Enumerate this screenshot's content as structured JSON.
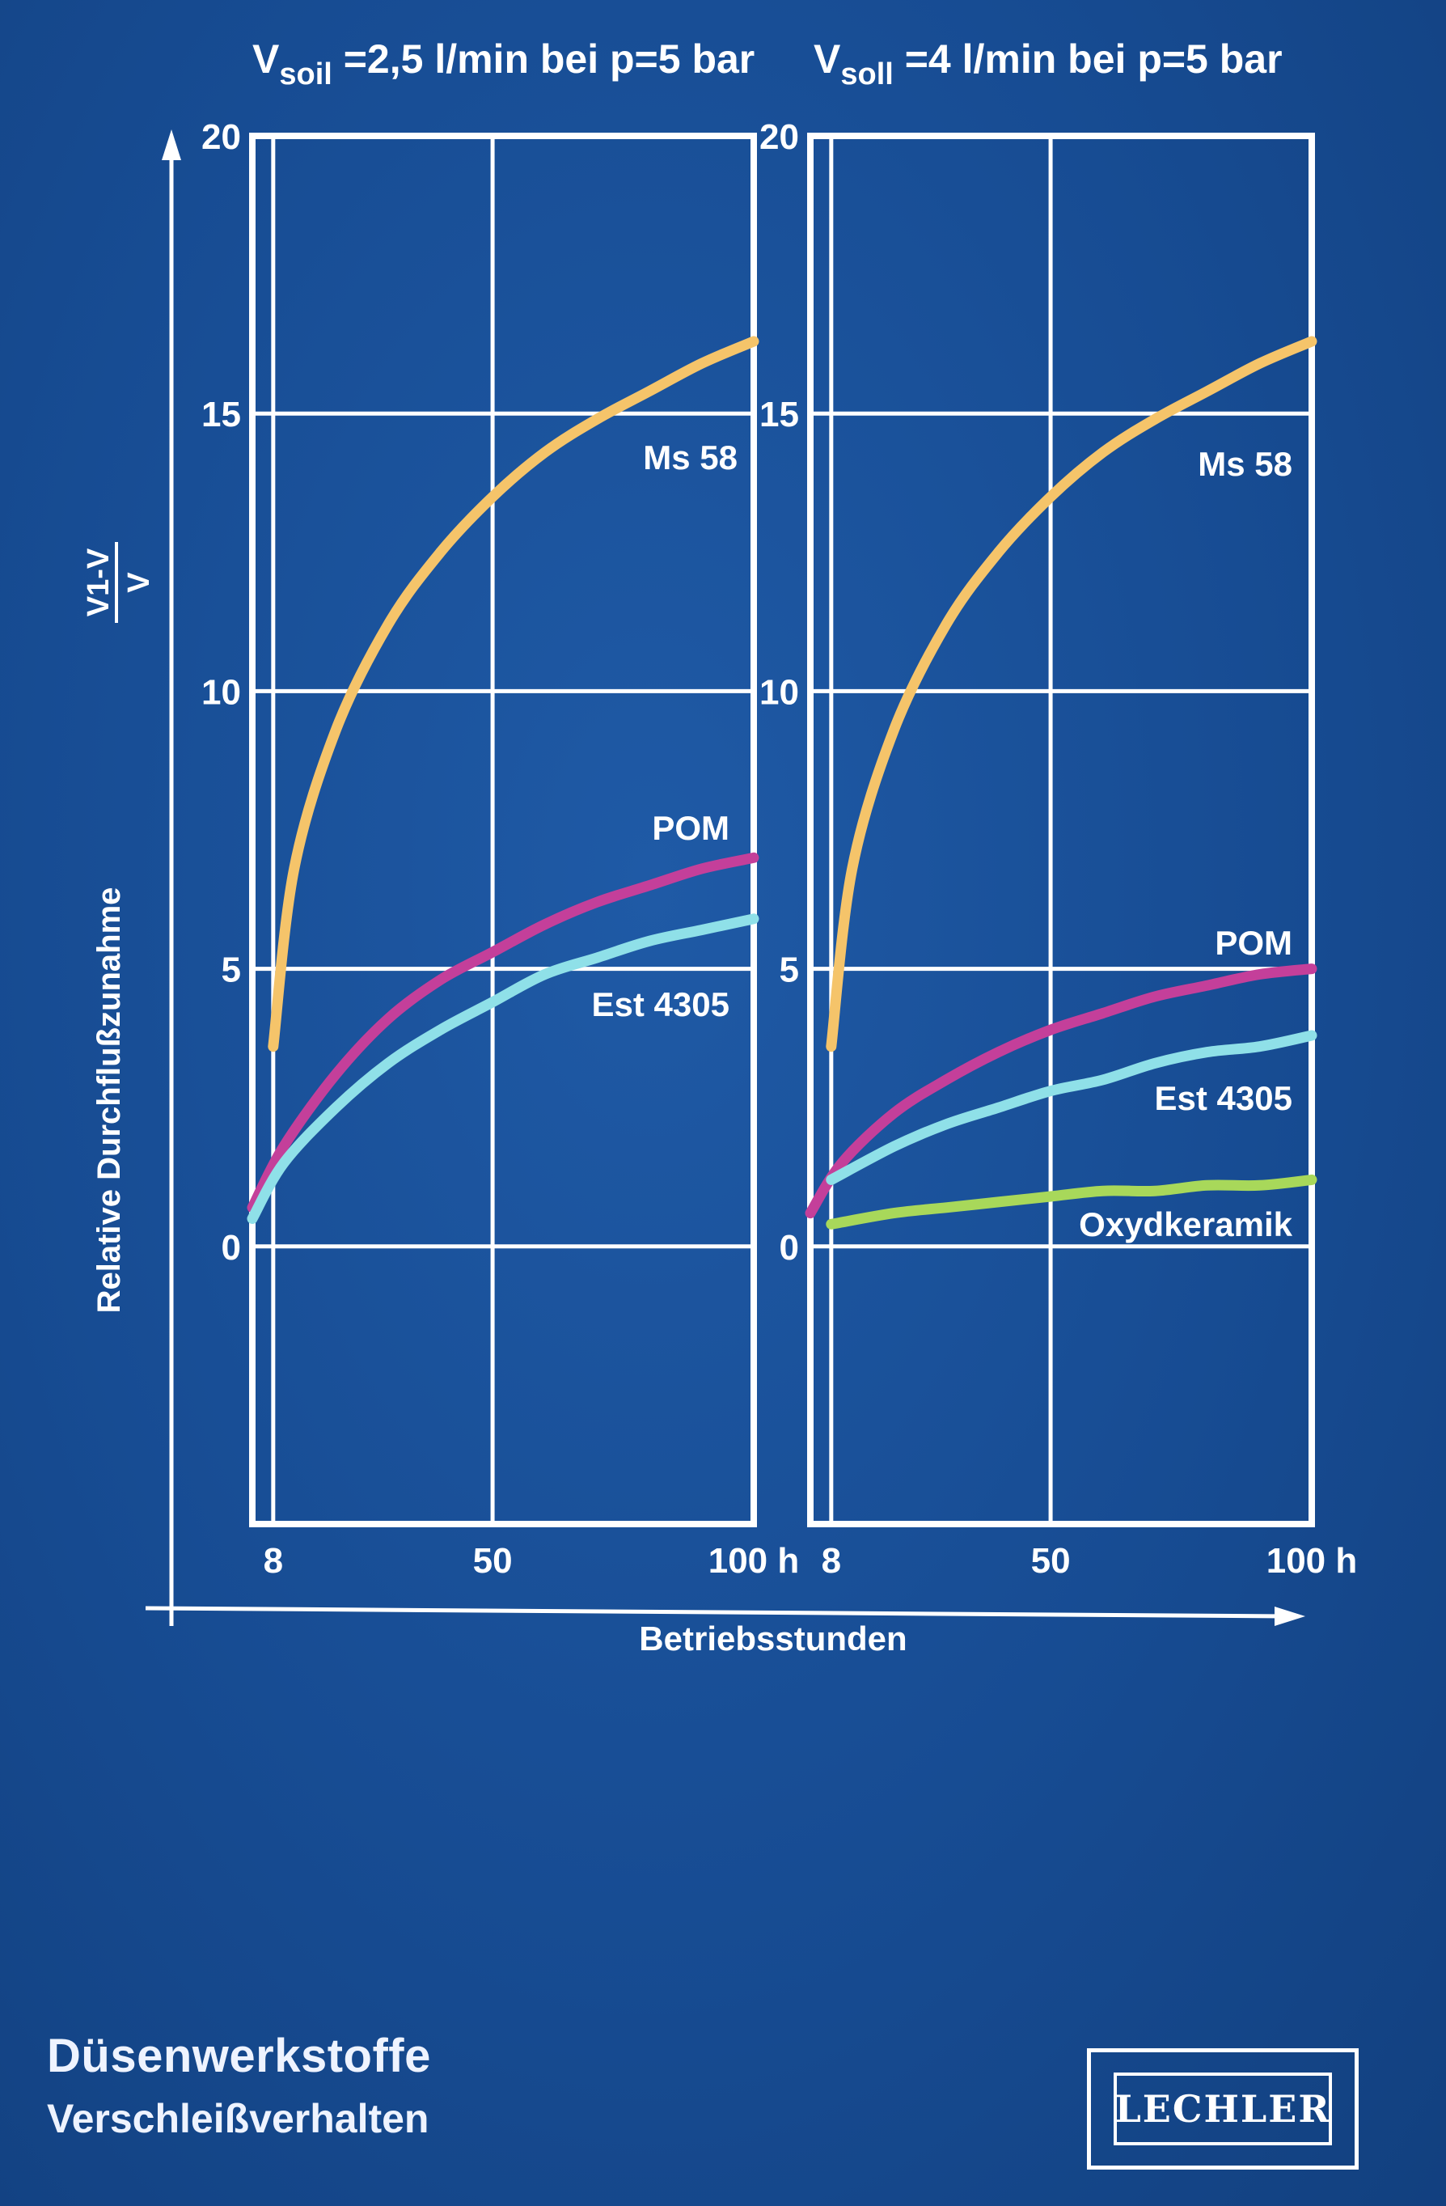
{
  "chart_data": [
    {
      "type": "line",
      "title": {
        "symbol": "V",
        "subscript": "soil",
        "rest": " =2,5 l/min bei p=5 bar"
      },
      "x_ticks": [
        8,
        50,
        100
      ],
      "x_tick_labels": [
        "8",
        "50",
        "100 h"
      ],
      "y_ticks": [
        0,
        5,
        10,
        15,
        20
      ],
      "y_tick_labels": [
        "0",
        "5",
        "10",
        "15",
        "20"
      ],
      "xlim": [
        4,
        100
      ],
      "ylim": [
        -5,
        20
      ],
      "grid": true,
      "series": [
        {
          "name": "Ms 58",
          "color": "#f5c46a",
          "x": [
            8,
            12,
            20,
            30,
            40,
            50,
            60,
            70,
            80,
            90,
            100
          ],
          "y": [
            3.6,
            6.8,
            9.3,
            11.2,
            12.5,
            13.5,
            14.3,
            14.9,
            15.4,
            15.9,
            16.3
          ]
        },
        {
          "name": "POM",
          "color": "#c43f9a",
          "x": [
            4,
            10,
            20,
            30,
            40,
            50,
            60,
            70,
            80,
            90,
            100
          ],
          "y": [
            0.7,
            1.8,
            3.1,
            4.1,
            4.8,
            5.3,
            5.8,
            6.2,
            6.5,
            6.8,
            7.0
          ]
        },
        {
          "name": "Est 4305",
          "color": "#8fe0e8",
          "x": [
            4,
            10,
            20,
            30,
            40,
            50,
            60,
            70,
            80,
            90,
            100
          ],
          "y": [
            0.5,
            1.5,
            2.5,
            3.3,
            3.9,
            4.4,
            4.9,
            5.2,
            5.5,
            5.7,
            5.9
          ]
        }
      ]
    },
    {
      "type": "line",
      "title": {
        "symbol": "V",
        "subscript": "soll",
        "rest": " =4 l/min bei p=5 bar"
      },
      "x_ticks": [
        8,
        50,
        100
      ],
      "x_tick_labels": [
        "8",
        "50",
        "100 h"
      ],
      "y_ticks": [
        0,
        5,
        10,
        15,
        20
      ],
      "y_tick_labels": [
        "0",
        "5",
        "10",
        "15",
        "20"
      ],
      "xlim": [
        4,
        100
      ],
      "ylim": [
        -5,
        20
      ],
      "grid": true,
      "series": [
        {
          "name": "Ms 58",
          "color": "#f5c46a",
          "x": [
            8,
            12,
            20,
            30,
            40,
            50,
            60,
            70,
            80,
            90,
            100
          ],
          "y": [
            3.6,
            6.8,
            9.3,
            11.2,
            12.5,
            13.5,
            14.3,
            14.9,
            15.4,
            15.9,
            16.3
          ]
        },
        {
          "name": "POM",
          "color": "#c43f9a",
          "x": [
            4,
            10,
            20,
            30,
            40,
            50,
            60,
            70,
            80,
            90,
            100
          ],
          "y": [
            0.6,
            1.5,
            2.4,
            3.0,
            3.5,
            3.9,
            4.2,
            4.5,
            4.7,
            4.9,
            5.0
          ]
        },
        {
          "name": "Est 4305",
          "color": "#8fe0e8",
          "x": [
            8,
            20,
            30,
            40,
            50,
            60,
            70,
            80,
            90,
            100
          ],
          "y": [
            1.2,
            1.8,
            2.2,
            2.5,
            2.8,
            3.0,
            3.3,
            3.5,
            3.6,
            3.8
          ]
        },
        {
          "name": "Oxydkeramik",
          "color": "#a8d85a",
          "x": [
            8,
            20,
            30,
            40,
            50,
            60,
            70,
            80,
            90,
            100
          ],
          "y": [
            0.4,
            0.6,
            0.7,
            0.8,
            0.9,
            1.0,
            1.0,
            1.1,
            1.1,
            1.2
          ]
        }
      ]
    }
  ],
  "y_axis_label": "Relative Durchflußzunahme",
  "y_axis_fraction": {
    "numerator": "V1-V",
    "denominator": "V"
  },
  "x_axis_label": "Betriebsstunden",
  "footer": {
    "title": "Düsenwerkstoffe",
    "subtitle": "Verschleißverhalten"
  },
  "logo": {
    "text": "LECHLER"
  }
}
